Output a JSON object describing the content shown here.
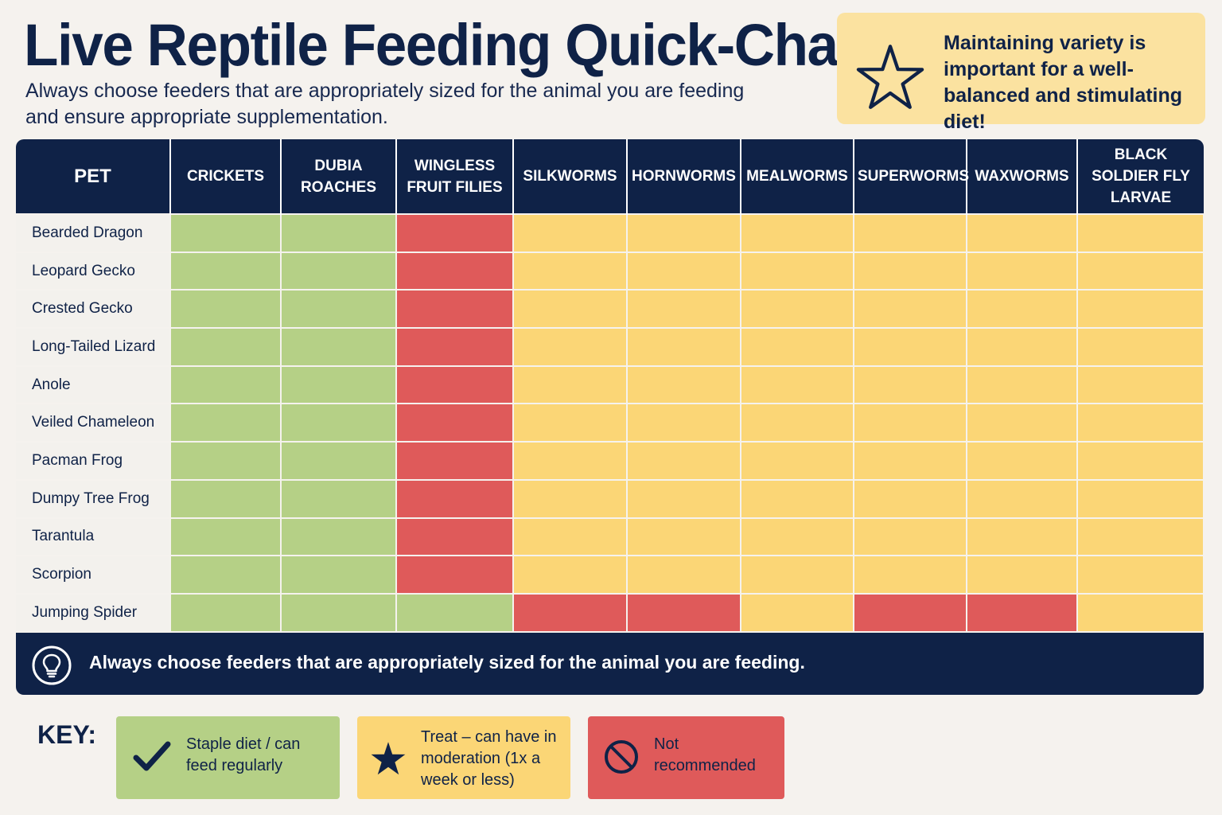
{
  "header": {
    "title": "Live Reptile Feeding Quick-Chart",
    "subtitle": "Always choose feeders that are appropriately sized for the animal you are feeding and ensure appropriate supplementation."
  },
  "tip": {
    "icon": "star-outline-icon",
    "text": "Maintaining variety is important for a well-balanced and stimulating diet!"
  },
  "chart_data": {
    "type": "table",
    "row_header": "PET",
    "columns": [
      "CRICKETS",
      "DUBIA ROACHES",
      "WINGLESS FRUIT FILIES",
      "SILKWORMS",
      "HORNWORMS",
      "MEALWORMS",
      "SUPERWORMS",
      "WAXWORMS",
      "BLACK SOLDIER FLY LARVAE"
    ],
    "rows": [
      {
        "pet": "Bearded Dragon",
        "values": [
          "staple",
          "staple",
          "no",
          "treat",
          "treat",
          "treat",
          "treat",
          "treat",
          "treat"
        ]
      },
      {
        "pet": "Leopard Gecko",
        "values": [
          "staple",
          "staple",
          "no",
          "treat",
          "treat",
          "treat",
          "treat",
          "treat",
          "treat"
        ]
      },
      {
        "pet": "Crested Gecko",
        "values": [
          "staple",
          "staple",
          "no",
          "treat",
          "treat",
          "treat",
          "treat",
          "treat",
          "treat"
        ]
      },
      {
        "pet": "Long-Tailed Lizard",
        "values": [
          "staple",
          "staple",
          "no",
          "treat",
          "treat",
          "treat",
          "treat",
          "treat",
          "treat"
        ]
      },
      {
        "pet": "Anole",
        "values": [
          "staple",
          "staple",
          "no",
          "treat",
          "treat",
          "treat",
          "treat",
          "treat",
          "treat"
        ]
      },
      {
        "pet": "Veiled Chameleon",
        "values": [
          "staple",
          "staple",
          "no",
          "treat",
          "treat",
          "treat",
          "treat",
          "treat",
          "treat"
        ]
      },
      {
        "pet": "Pacman Frog",
        "values": [
          "staple",
          "staple",
          "no",
          "treat",
          "treat",
          "treat",
          "treat",
          "treat",
          "treat"
        ]
      },
      {
        "pet": "Dumpy Tree Frog",
        "values": [
          "staple",
          "staple",
          "no",
          "treat",
          "treat",
          "treat",
          "treat",
          "treat",
          "treat"
        ]
      },
      {
        "pet": "Tarantula",
        "values": [
          "staple",
          "staple",
          "no",
          "treat",
          "treat",
          "treat",
          "treat",
          "treat",
          "treat"
        ]
      },
      {
        "pet": "Scorpion",
        "values": [
          "staple",
          "staple",
          "no",
          "treat",
          "treat",
          "treat",
          "treat",
          "treat",
          "treat"
        ]
      },
      {
        "pet": "Jumping Spider",
        "values": [
          "staple",
          "staple",
          "staple",
          "no",
          "no",
          "treat",
          "no",
          "no",
          "treat"
        ]
      }
    ]
  },
  "footer_note": {
    "icon": "lightbulb-icon",
    "text": "Always choose feeders that are appropriately sized for the animal you are feeding."
  },
  "key": {
    "label": "KEY:",
    "items": [
      {
        "code": "staple",
        "icon": "checkmark-icon",
        "text": "Staple diet / can feed regularly",
        "color": "#b5d086"
      },
      {
        "code": "treat",
        "icon": "star-icon",
        "text": "Treat – can have in moderation (1x a week or less)",
        "color": "#fbd676"
      },
      {
        "code": "no",
        "icon": "prohibited-icon",
        "text": "Not recommended",
        "color": "#df5a5a"
      }
    ]
  },
  "colors": {
    "navy": "#0f2247",
    "staple": "#b5d086",
    "treat": "#fbd676",
    "not_recommended": "#df5a5a",
    "tip_background": "#fbe2a0",
    "page_background": "#f5f2ee"
  }
}
